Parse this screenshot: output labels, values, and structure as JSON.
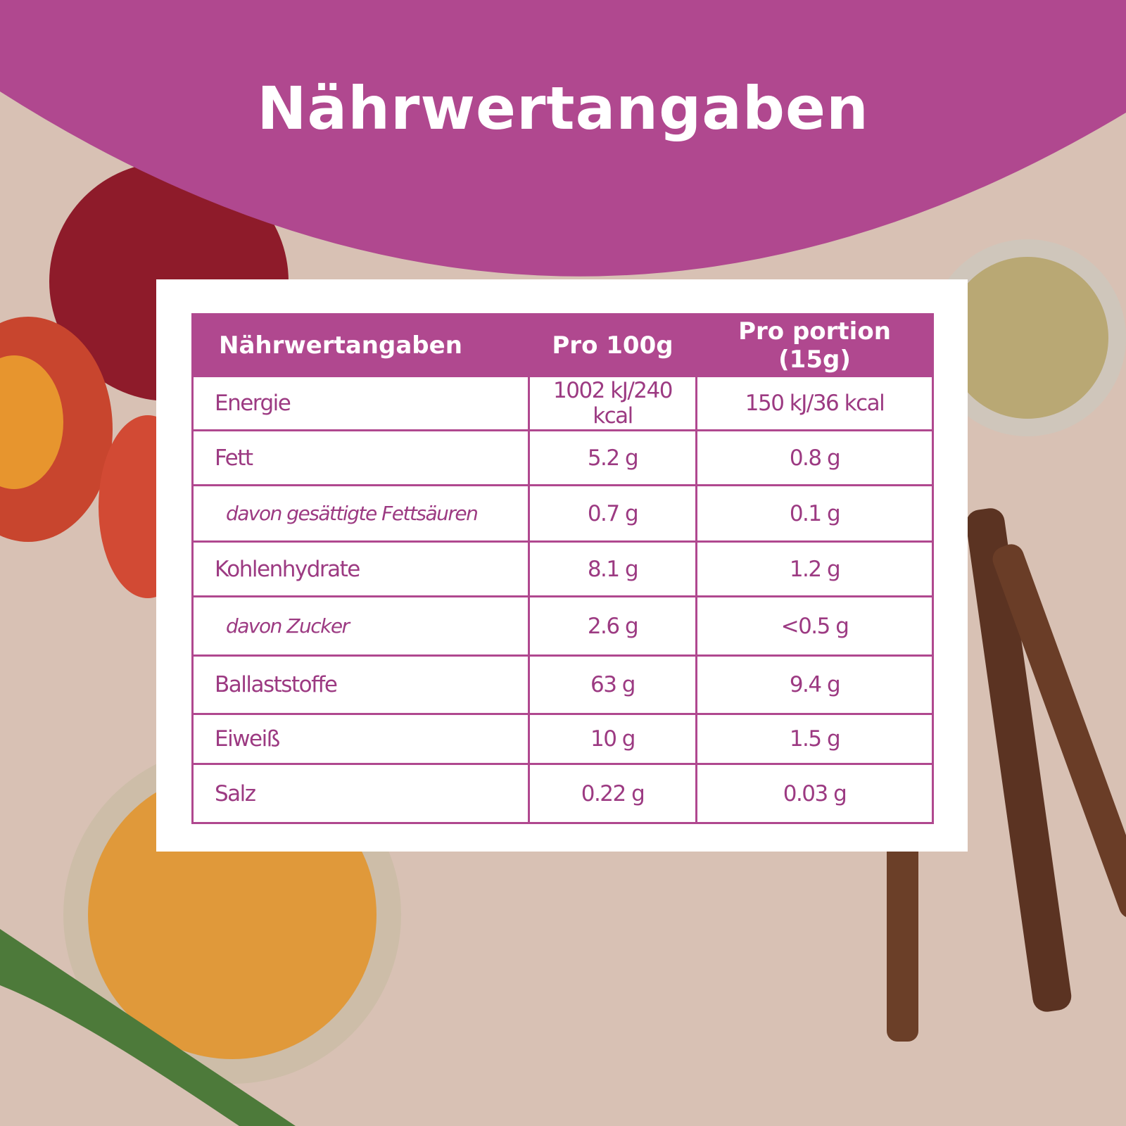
{
  "header": {
    "title": "Nährwertangaben"
  },
  "table": {
    "columns": [
      "Nährwertangaben",
      "Pro 100g",
      "Pro portion (15g)"
    ],
    "rows": [
      [
        "Energie",
        "1002 kJ/240 kcal",
        "150 kJ/36 kcal"
      ],
      [
        "Fett",
        "5.2 g",
        "0.8 g"
      ],
      [
        "davon gesättigte Fettsäuren",
        "0.7 g",
        "0.1 g"
      ],
      [
        "Kohlenhydrate",
        "8.1 g",
        "1.2 g"
      ],
      [
        "davon Zucker",
        "2.6 g",
        "<0.5 g"
      ],
      [
        "Ballaststoffe",
        "63 g",
        "9.4 g"
      ],
      [
        "Eiweiß",
        "10 g",
        "1.5 g"
      ],
      [
        "Salz",
        "0.22 g",
        "0.03 g"
      ]
    ]
  }
}
